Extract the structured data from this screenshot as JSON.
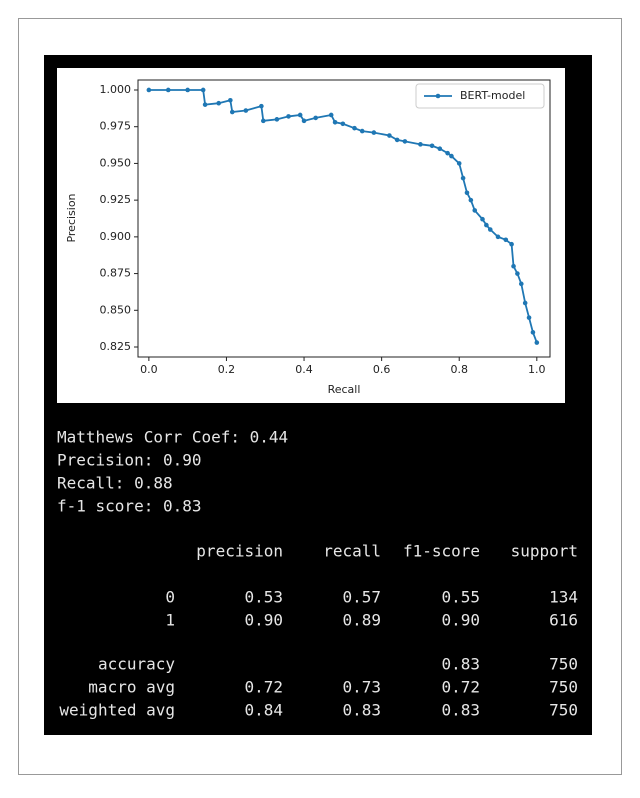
{
  "chart_data": {
    "type": "line",
    "xlabel": "Recall",
    "ylabel": "Precision",
    "x": [
      0,
      0.05,
      0.1,
      0.14,
      0.145,
      0.18,
      0.21,
      0.215,
      0.25,
      0.29,
      0.295,
      0.33,
      0.36,
      0.39,
      0.4,
      0.43,
      0.47,
      0.48,
      0.5,
      0.53,
      0.55,
      0.58,
      0.62,
      0.64,
      0.66,
      0.7,
      0.73,
      0.75,
      0.77,
      0.78,
      0.8,
      0.81,
      0.82,
      0.83,
      0.84,
      0.86,
      0.87,
      0.88,
      0.9,
      0.92,
      0.935,
      0.94,
      0.95,
      0.96,
      0.97,
      0.98,
      0.99,
      1.0
    ],
    "series": [
      {
        "name": "BERT-model",
        "color": "#1f77b4",
        "values": [
          1.0,
          1.0,
          1.0,
          1.0,
          0.99,
          0.991,
          0.993,
          0.985,
          0.986,
          0.989,
          0.979,
          0.98,
          0.982,
          0.983,
          0.979,
          0.981,
          0.983,
          0.978,
          0.977,
          0.974,
          0.972,
          0.971,
          0.969,
          0.966,
          0.965,
          0.963,
          0.962,
          0.96,
          0.957,
          0.955,
          0.95,
          0.94,
          0.93,
          0.925,
          0.918,
          0.912,
          0.908,
          0.905,
          0.9,
          0.898,
          0.895,
          0.88,
          0.875,
          0.868,
          0.855,
          0.845,
          0.835,
          0.828
        ]
      }
    ],
    "xlim": [
      -0.028,
      1.034
    ],
    "ylim": [
      0.8182,
      1.0068
    ],
    "xticks": [
      {
        "value": 0,
        "label": "0.0"
      },
      0.2,
      0.4,
      0.6,
      0.8,
      {
        "value": 1,
        "label": "1.0"
      }
    ],
    "yticks": [
      0.825,
      {
        "value": 0.85,
        "label": "0.850"
      },
      0.875,
      {
        "value": 0.9,
        "label": "0.900"
      },
      0.925,
      {
        "value": 0.95,
        "label": "0.950"
      },
      0.975,
      {
        "value": 1,
        "label": "1.000"
      }
    ],
    "grid": false,
    "legend": "upper right"
  },
  "output": {
    "lines": [
      "Matthews Corr Coef: 0.44",
      "Precision: 0.90",
      "Recall: 0.88",
      "f-1 score: 0.83"
    ]
  },
  "report": {
    "columns": [
      "precision",
      "recall",
      "f1-score",
      "support"
    ],
    "rows": [
      {
        "label": "0",
        "cells": [
          "0.53",
          "0.57",
          "0.55",
          "134"
        ]
      },
      {
        "label": "1",
        "cells": [
          "0.90",
          "0.89",
          "0.90",
          "616"
        ]
      },
      {
        "label": "accuracy",
        "cells": [
          null,
          null,
          "0.83",
          "750"
        ]
      },
      {
        "label": "macro avg",
        "cells": [
          "0.72",
          "0.73",
          "0.72",
          "750"
        ]
      },
      {
        "label": "weighted avg",
        "cells": [
          "0.84",
          "0.83",
          "0.83",
          "750"
        ]
      }
    ]
  }
}
